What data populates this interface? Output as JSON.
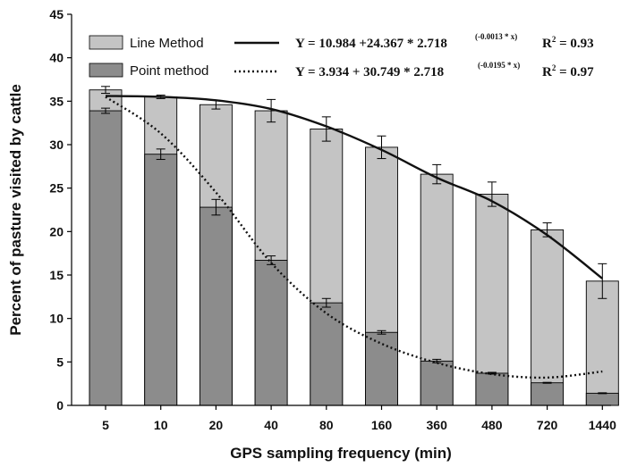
{
  "chart_data": {
    "type": "bar",
    "xlabel": "GPS sampling frequency (min)",
    "ylabel": "Percent of pasture visited by cattle",
    "ylim": [
      0,
      45
    ],
    "yticks": [
      0,
      5,
      10,
      15,
      20,
      25,
      30,
      35,
      40,
      45
    ],
    "categories": [
      "5",
      "10",
      "20",
      "40",
      "80",
      "160",
      "360",
      "480",
      "720",
      "1440"
    ],
    "series": [
      {
        "name": "Line Method",
        "color": "#c4c4c4",
        "values": [
          36.3,
          35.5,
          34.6,
          33.9,
          31.8,
          29.7,
          26.6,
          24.3,
          20.2,
          14.3
        ],
        "error": [
          0.4,
          0.2,
          0.5,
          1.3,
          1.4,
          1.3,
          1.1,
          1.4,
          0.8,
          2.0
        ]
      },
      {
        "name": "Point method",
        "color": "#8c8c8c",
        "values": [
          33.9,
          28.9,
          22.8,
          16.7,
          11.8,
          8.4,
          5.1,
          3.7,
          2.6,
          1.4
        ],
        "error": [
          0.3,
          0.6,
          0.9,
          0.5,
          0.5,
          0.2,
          0.2,
          0.1,
          0.05,
          0.05
        ]
      }
    ],
    "fits": [
      {
        "series": "Line Method",
        "style": "solid",
        "a": 10.984,
        "b": 24.367,
        "c": -0.0013,
        "eq_main": "Y =  10.984 +24.367 * 2.718",
        "eq_exp": "(-0.0013 * x)",
        "r2_label": "R",
        "r2_value": " = 0.93"
      },
      {
        "series": "Point method",
        "style": "dotted",
        "a": 3.934,
        "b": 30.749,
        "c": -0.0195,
        "eq_main": "Y =    3.934 + 30.749 * 2.718",
        "eq_exp": "(-0.0195 * x)",
        "r2_label": "R",
        "r2_value": " = 0.97"
      }
    ],
    "legend_position": "top-left",
    "grid": false
  }
}
